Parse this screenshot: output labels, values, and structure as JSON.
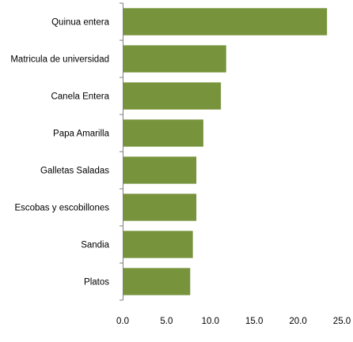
{
  "chart_data": {
    "type": "bar",
    "orientation": "horizontal",
    "title": "",
    "xlabel": "",
    "ylabel": "",
    "categories": [
      "Quinua entera",
      "Matricula de universidad",
      "Canela Entera",
      "Papa Amarilla",
      "Galletas Saladas",
      "Escobas y escobillones",
      "Sandia",
      "Platos"
    ],
    "values": [
      23.3,
      11.8,
      11.2,
      9.2,
      8.4,
      8.4,
      8.0,
      7.7
    ],
    "xlim": [
      0,
      25
    ],
    "xticks": [
      "0.0",
      "5.0",
      "10.0",
      "15.0",
      "20.0",
      "25.0"
    ],
    "xtick_values": [
      0,
      5,
      10,
      15,
      20,
      25
    ],
    "grid": false,
    "legend": "none",
    "bar_color": "#77933C"
  }
}
